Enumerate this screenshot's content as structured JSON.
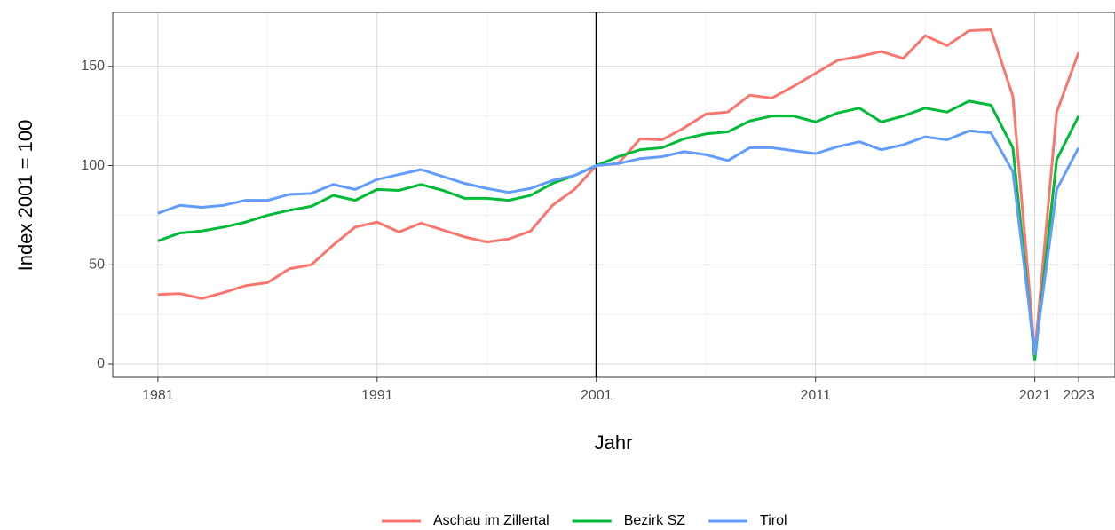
{
  "chart_data": {
    "type": "line",
    "x_label": "Jahr",
    "y_label": "Index 2001 = 100",
    "x": [
      1981,
      1982,
      1983,
      1984,
      1985,
      1986,
      1987,
      1988,
      1989,
      1990,
      1991,
      1992,
      1993,
      1994,
      1995,
      1996,
      1997,
      1998,
      1999,
      2000,
      2001,
      2002,
      2003,
      2004,
      2005,
      2006,
      2007,
      2008,
      2009,
      2010,
      2011,
      2012,
      2013,
      2014,
      2015,
      2016,
      2017,
      2018,
      2019,
      2020,
      2021,
      2022,
      2023
    ],
    "series": [
      {
        "name": "Aschau im Zillertal",
        "color": "#F8766D",
        "values": [
          35,
          35.5,
          33,
          36,
          39.5,
          41,
          48,
          50,
          60,
          69,
          71.5,
          66.5,
          71,
          67.5,
          64,
          61.5,
          63,
          67,
          80,
          88,
          100,
          101,
          113.5,
          113,
          119,
          126,
          127,
          135.5,
          134,
          140,
          146.5,
          153,
          155,
          157.5,
          154,
          165.5,
          160.5,
          168,
          168.5,
          135,
          5,
          127,
          157
        ]
      },
      {
        "name": "Bezirk SZ",
        "color": "#00BA38",
        "values": [
          62,
          66,
          67,
          69,
          71.5,
          75,
          77.5,
          79.5,
          85,
          82.5,
          88,
          87.5,
          90.5,
          87.5,
          83.5,
          83.5,
          82.5,
          85,
          91,
          95,
          100,
          104.5,
          108,
          109,
          113.5,
          116,
          117,
          122.5,
          125,
          125,
          122,
          126.5,
          129,
          122,
          125,
          129,
          127,
          132.5,
          130.5,
          109,
          2,
          103,
          125
        ]
      },
      {
        "name": "Tirol",
        "color": "#619CFF",
        "values": [
          76,
          80,
          79,
          80,
          82.5,
          82.5,
          85.5,
          86,
          90.5,
          88,
          93,
          95.5,
          98,
          94.5,
          91,
          88.5,
          86.5,
          88.5,
          92.5,
          95,
          100,
          101,
          103.5,
          104.5,
          107,
          105.5,
          102.5,
          109,
          109,
          107.5,
          106,
          109.5,
          112,
          108,
          110.5,
          114.5,
          113,
          117.5,
          116.5,
          97,
          5,
          88,
          109
        ]
      }
    ],
    "xlim": [
      1978.94,
      2024.66
    ],
    "xticks": [
      1981,
      1991,
      2001,
      2011,
      2021,
      2023
    ],
    "ylim": [
      -6.7,
      177.2
    ],
    "yticks": [
      0,
      50,
      100,
      150
    ],
    "grid": true,
    "minor_grid": true,
    "vline": 2001,
    "legend": "bottom"
  }
}
